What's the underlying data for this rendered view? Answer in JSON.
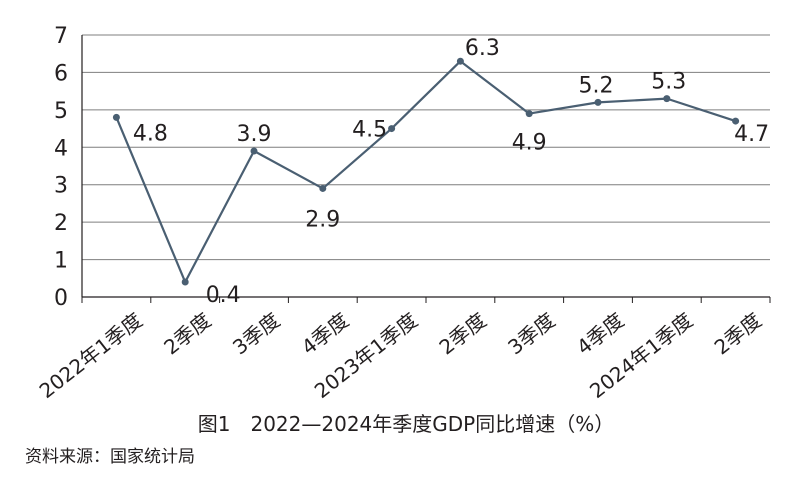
{
  "caption": "图1　2022—2024年季度GDP同比增速（%）",
  "source": "资料来源：国家统计局",
  "colors": {
    "line": "#4a5f72",
    "grid": "#7f7f7f",
    "axis": "#231f20",
    "text": "#231f20"
  },
  "chart_data": {
    "type": "line",
    "categories": [
      "2022年1季度",
      "2季度",
      "3季度",
      "4季度",
      "2023年1季度",
      "2季度",
      "3季度",
      "4季度",
      "2024年1季度",
      "2季度"
    ],
    "series": [
      {
        "values": [
          4.8,
          0.4,
          3.9,
          2.9,
          4.5,
          6.3,
          4.9,
          5.2,
          5.3,
          4.7
        ]
      }
    ],
    "y_ticks": [
      "0",
      "1",
      "2",
      "3",
      "4",
      "5",
      "6",
      "7"
    ],
    "data_labels": [
      "4.8",
      "0.4",
      "3.9",
      "2.9",
      "4.5",
      "6.3",
      "4.9",
      "5.2",
      "5.3",
      "4.7"
    ],
    "ylim": [
      0,
      7
    ],
    "grid": true,
    "legend": "none",
    "title": "",
    "xlabel": "",
    "ylabel": ""
  }
}
